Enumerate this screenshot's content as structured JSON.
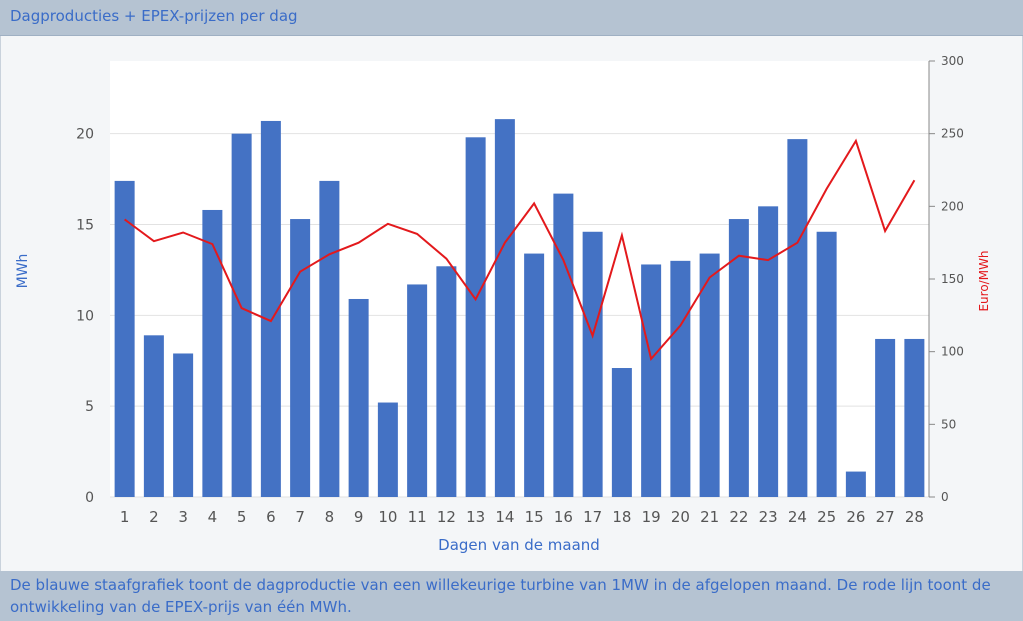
{
  "header": {
    "title": "Dagproducties + EPEX-prijzen per dag"
  },
  "caption": "De blauwe staafgrafiek toont de dagproductie van een willekeurige turbine van 1MW in de afgelopen maand. De rode lijn toont de ontwikkeling van de EPEX-prijs van één MWh.",
  "chart_data": {
    "type": "bar",
    "xlabel": "Dagen van de maand",
    "ylabel": "MWh",
    "y2label": "Euro/MWh",
    "ylim": [
      0,
      24
    ],
    "y2lim": [
      0,
      300
    ],
    "yticks": [
      0,
      5,
      10,
      15,
      20
    ],
    "y2ticks": [
      0,
      50,
      100,
      150,
      200,
      250,
      300
    ],
    "grid": true,
    "categories": [
      "1",
      "2",
      "3",
      "4",
      "5",
      "6",
      "7",
      "8",
      "9",
      "10",
      "11",
      "12",
      "13",
      "14",
      "15",
      "16",
      "17",
      "18",
      "19",
      "20",
      "21",
      "22",
      "23",
      "24",
      "25",
      "26",
      "27",
      "28"
    ],
    "series": [
      {
        "type": "bar",
        "axis": "left",
        "color": "#4472c4",
        "values": [
          17.4,
          8.9,
          7.9,
          15.8,
          20.0,
          20.7,
          15.3,
          17.4,
          10.9,
          5.2,
          11.7,
          12.7,
          19.8,
          20.8,
          13.4,
          16.7,
          14.6,
          7.1,
          12.8,
          13.0,
          13.4,
          15.3,
          16.0,
          19.7,
          14.6,
          1.4,
          8.7,
          8.7
        ]
      },
      {
        "type": "line",
        "axis": "right",
        "color": "#e3191c",
        "values": [
          191,
          176,
          182,
          174,
          130,
          121,
          155,
          167,
          175,
          188,
          181,
          164,
          136,
          175,
          202,
          163,
          111,
          180,
          95,
          118,
          151,
          166,
          163,
          175,
          212,
          245,
          183,
          218
        ]
      }
    ]
  }
}
